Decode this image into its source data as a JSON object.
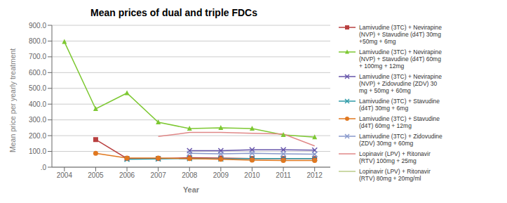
{
  "chart_data": {
    "type": "line",
    "title": "Mean prices of dual and triple FDCs",
    "x_label": "Year",
    "y_label": "Mean price per yearly treatment",
    "x": [
      2004,
      2005,
      2006,
      2007,
      2008,
      2009,
      2010,
      2011,
      2012
    ],
    "xlim": [
      2003.6,
      2012.5
    ],
    "xticks": [
      2004,
      2005,
      2006,
      2007,
      2008,
      2009,
      2010,
      2011,
      2012
    ],
    "ylim": [
      0,
      900
    ],
    "yticks": [
      {
        "value": 0,
        "label": ".0"
      },
      {
        "value": 100,
        "label": "100.0"
      },
      {
        "value": 200,
        "label": "200.0"
      },
      {
        "value": 300,
        "label": "300.0"
      },
      {
        "value": 400,
        "label": "400.0"
      },
      {
        "value": 500,
        "label": "500.0"
      },
      {
        "value": 600,
        "label": "600.0"
      },
      {
        "value": 700,
        "label": "700.0"
      },
      {
        "value": 800,
        "label": "800.0"
      },
      {
        "value": 900,
        "label": "900.0"
      }
    ],
    "grid": true,
    "legend": "right",
    "series": [
      {
        "name": "Lamivudine (3TC) + Nevirapine\n(NVP) + Stavudine (d4T) 30mg\n+50mg + 6mg",
        "color": "#B94040",
        "marker": "square",
        "values": [
          null,
          175,
          55,
          55,
          60,
          58,
          55,
          55,
          55
        ]
      },
      {
        "name": "Lamivudine (3TC) + Nevirapine\n(NVP) + Stavudine (d4T) 60mg\n+ 100mg + 12mg",
        "color": "#7DC832",
        "marker": "triangle",
        "values": [
          795,
          370,
          470,
          285,
          245,
          250,
          245,
          205,
          190
        ]
      },
      {
        "name": "Lamivudine (3TC) + Nevirapine\n(NVP) + Zidovudine (ZDV) 30\nmg + 50mg + 60mg",
        "color": "#6655AA",
        "marker": "x",
        "values": [
          null,
          null,
          null,
          null,
          105,
          105,
          110,
          110,
          108
        ]
      },
      {
        "name": "Lamivudine (3TC) + Stavudine\n(d4T) 30mg + 6mg",
        "color": "#2E9BA8",
        "marker": "x",
        "values": [
          null,
          null,
          50,
          52,
          55,
          52,
          55,
          55,
          55
        ]
      },
      {
        "name": "Lamivudine (3TC) + Stavudine\n(d4T) 60mg + 12mg",
        "color": "#E07820",
        "marker": "circle",
        "values": [
          null,
          88,
          58,
          58,
          55,
          50,
          45,
          42,
          42
        ]
      },
      {
        "name": "Lamivudine (3TC) + Zidovudine\n(ZDV) 30mg + 60mg",
        "color": "#8899CC",
        "marker": "x",
        "values": [
          null,
          null,
          null,
          null,
          88,
          85,
          88,
          85,
          82
        ]
      },
      {
        "name": "Lopinavir (LPV) + Ritonavir\n(RTV) 100mg + 25mg",
        "color": "#E08888",
        "marker": "none",
        "values": [
          null,
          null,
          null,
          195,
          220,
          220,
          215,
          210,
          135
        ]
      },
      {
        "name": "Lopinavir (LPV) + Ritonavir\n(RTV) 80mg + 20mg/ml",
        "color": "#BBCC88",
        "marker": "none",
        "values": [
          null,
          null,
          null,
          null,
          null,
          null,
          null,
          null,
          null
        ]
      }
    ]
  }
}
